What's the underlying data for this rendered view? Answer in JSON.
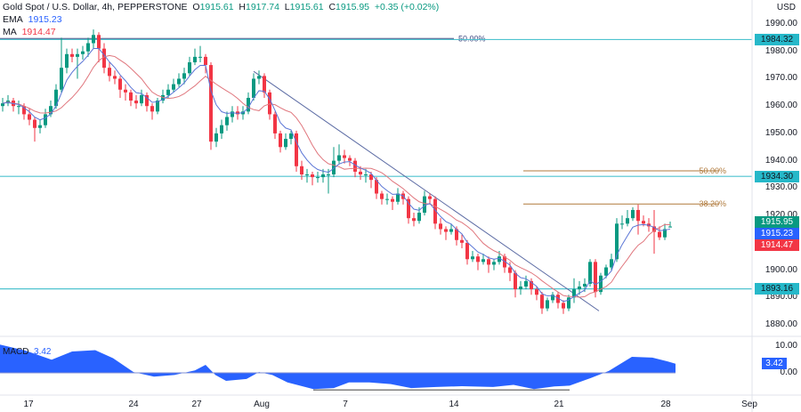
{
  "header": {
    "symbol": "Gold Spot / U.S. Dollar, 4h, PEPPERSTONE",
    "open_label": "O",
    "open": "1915.61",
    "high_label": "H",
    "high": "1917.74",
    "low_label": "L",
    "low": "1915.61",
    "close_label": "C",
    "close": "1915.95",
    "change": "+0.35 (+0.02%)",
    "ema_label": "EMA",
    "ema_value": "1915.23",
    "ma_label": "MA",
    "ma_value": "1914.47"
  },
  "price_axis": {
    "currency": "USD",
    "ticks": [
      "1990.00",
      "1980.00",
      "1970.00",
      "1960.00",
      "1950.00",
      "1940.00",
      "1930.00",
      "1920.00",
      "1900.00",
      "1890.00",
      "1880.00"
    ],
    "tick_values": [
      1990,
      1980,
      1970,
      1960,
      1950,
      1940,
      1930,
      1920,
      1900,
      1890,
      1880
    ],
    "last_price": "1915.95",
    "ema_price": "1915.23",
    "ma_price": "1914.47"
  },
  "macd_axis": {
    "ticks": [
      "10.00",
      "0.00"
    ],
    "tick_values": [
      10,
      0
    ],
    "label": "MACD",
    "value": "3.42"
  },
  "time_axis": [
    "17",
    "24",
    "27",
    "Aug",
    "7",
    "14",
    "21",
    "28",
    "Sep"
  ],
  "colors": {
    "up": "#089981",
    "down": "#f23645",
    "ema": "#5b76d6",
    "ma": "#e0767d",
    "hline": "#4fc3cf",
    "fib": "#b07a3c",
    "trend": "#5a6aa3",
    "macd": "#2962ff"
  },
  "chart_data": {
    "type": "candlestick",
    "ylim": [
      1873,
      1995
    ],
    "candles": [
      [
        1960,
        1963,
        1958,
        1961
      ],
      [
        1961,
        1964,
        1960,
        1962
      ],
      [
        1962,
        1963,
        1958,
        1960
      ],
      [
        1960,
        1962,
        1957,
        1960
      ],
      [
        1960,
        1961,
        1955,
        1957
      ],
      [
        1957,
        1959,
        1953,
        1955
      ],
      [
        1955,
        1956,
        1947,
        1952
      ],
      [
        1952,
        1955,
        1950,
        1953
      ],
      [
        1953,
        1959,
        1952,
        1957
      ],
      [
        1957,
        1962,
        1956,
        1960
      ],
      [
        1960,
        1968,
        1959,
        1966
      ],
      [
        1966,
        1985,
        1965,
        1974
      ],
      [
        1974,
        1981,
        1972,
        1979
      ],
      [
        1979,
        1981,
        1976,
        1978
      ],
      [
        1978,
        1981,
        1970,
        1979
      ],
      [
        1979,
        1982,
        1977,
        1980
      ],
      [
        1980,
        1985,
        1978,
        1983
      ],
      [
        1983,
        1988,
        1981,
        1986
      ],
      [
        1986,
        1987,
        1976,
        1981
      ],
      [
        1981,
        1983,
        1972,
        1974
      ],
      [
        1974,
        1976,
        1969,
        1971
      ],
      [
        1971,
        1973,
        1968,
        1970
      ],
      [
        1970,
        1971,
        1963,
        1966
      ],
      [
        1966,
        1968,
        1962,
        1965
      ],
      [
        1965,
        1966,
        1960,
        1962
      ],
      [
        1962,
        1964,
        1959,
        1961
      ],
      [
        1961,
        1966,
        1960,
        1964
      ],
      [
        1964,
        1965,
        1958,
        1960
      ],
      [
        1960,
        1961,
        1955,
        1958
      ],
      [
        1958,
        1963,
        1957,
        1962
      ],
      [
        1962,
        1966,
        1961,
        1964
      ],
      [
        1964,
        1968,
        1963,
        1966
      ],
      [
        1966,
        1970,
        1965,
        1968
      ],
      [
        1968,
        1972,
        1967,
        1970
      ],
      [
        1970,
        1974,
        1968,
        1972
      ],
      [
        1972,
        1978,
        1971,
        1976
      ],
      [
        1976,
        1981,
        1975,
        1978
      ],
      [
        1978,
        1982,
        1976,
        1978
      ],
      [
        1978,
        1979,
        1972,
        1975
      ],
      [
        1975,
        1976,
        1944,
        1947
      ],
      [
        1947,
        1952,
        1945,
        1950
      ],
      [
        1950,
        1955,
        1948,
        1953
      ],
      [
        1953,
        1958,
        1951,
        1956
      ],
      [
        1956,
        1960,
        1954,
        1958
      ],
      [
        1958,
        1960,
        1955,
        1957
      ],
      [
        1957,
        1960,
        1955,
        1958
      ],
      [
        1958,
        1965,
        1957,
        1963
      ],
      [
        1963,
        1972,
        1962,
        1970
      ],
      [
        1970,
        1973,
        1968,
        1971
      ],
      [
        1971,
        1972,
        1963,
        1965
      ],
      [
        1965,
        1966,
        1955,
        1957
      ],
      [
        1957,
        1958,
        1948,
        1950
      ],
      [
        1950,
        1951,
        1943,
        1945
      ],
      [
        1945,
        1950,
        1944,
        1948
      ],
      [
        1948,
        1951,
        1946,
        1950
      ],
      [
        1950,
        1951,
        1936,
        1938
      ],
      [
        1938,
        1940,
        1933,
        1935
      ],
      [
        1935,
        1937,
        1932,
        1935
      ],
      [
        1935,
        1936,
        1931,
        1934
      ],
      [
        1934,
        1936,
        1932,
        1934
      ],
      [
        1934,
        1937,
        1932,
        1935
      ],
      [
        1935,
        1937,
        1928,
        1935
      ],
      [
        1935,
        1945,
        1934,
        1940
      ],
      [
        1940,
        1946,
        1939,
        1942
      ],
      [
        1942,
        1944,
        1939,
        1941
      ],
      [
        1941,
        1942,
        1938,
        1940
      ],
      [
        1940,
        1941,
        1934,
        1936
      ],
      [
        1936,
        1938,
        1933,
        1935
      ],
      [
        1935,
        1937,
        1932,
        1935
      ],
      [
        1935,
        1936,
        1930,
        1933
      ],
      [
        1933,
        1934,
        1926,
        1928
      ],
      [
        1928,
        1929,
        1924,
        1926
      ],
      [
        1926,
        1928,
        1924,
        1926
      ],
      [
        1926,
        1927,
        1922,
        1925
      ],
      [
        1925,
        1930,
        1924,
        1928
      ],
      [
        1928,
        1929,
        1924,
        1926
      ],
      [
        1926,
        1927,
        1917,
        1919
      ],
      [
        1919,
        1921,
        1916,
        1918
      ],
      [
        1918,
        1923,
        1917,
        1921
      ],
      [
        1921,
        1929,
        1920,
        1927
      ],
      [
        1927,
        1928,
        1924,
        1926
      ],
      [
        1926,
        1927,
        1915,
        1917
      ],
      [
        1917,
        1919,
        1913,
        1915
      ],
      [
        1915,
        1916,
        1911,
        1914
      ],
      [
        1914,
        1917,
        1913,
        1915
      ],
      [
        1915,
        1916,
        1909,
        1911
      ],
      [
        1911,
        1913,
        1908,
        1910
      ],
      [
        1910,
        1911,
        1902,
        1904
      ],
      [
        1904,
        1907,
        1903,
        1905
      ],
      [
        1905,
        1906,
        1900,
        1903
      ],
      [
        1903,
        1906,
        1902,
        1904
      ],
      [
        1904,
        1905,
        1899,
        1902
      ],
      [
        1902,
        1904,
        1900,
        1903
      ],
      [
        1903,
        1907,
        1902,
        1905
      ],
      [
        1905,
        1906,
        1899,
        1901
      ],
      [
        1901,
        1903,
        1896,
        1899
      ],
      [
        1899,
        1900,
        1890,
        1893
      ],
      [
        1893,
        1896,
        1891,
        1894
      ],
      [
        1894,
        1898,
        1893,
        1896
      ],
      [
        1896,
        1897,
        1891,
        1893
      ],
      [
        1893,
        1894,
        1889,
        1891
      ],
      [
        1891,
        1892,
        1884,
        1886
      ],
      [
        1886,
        1890,
        1885,
        1889
      ],
      [
        1889,
        1892,
        1888,
        1891
      ],
      [
        1891,
        1892,
        1886,
        1888
      ],
      [
        1888,
        1889,
        1884,
        1886
      ],
      [
        1886,
        1891,
        1885,
        1890
      ],
      [
        1890,
        1897,
        1888,
        1893
      ],
      [
        1893,
        1896,
        1891,
        1894
      ],
      [
        1894,
        1897,
        1892,
        1895
      ],
      [
        1895,
        1904,
        1894,
        1903
      ],
      [
        1903,
        1904,
        1890,
        1892
      ],
      [
        1892,
        1899,
        1891,
        1898
      ],
      [
        1898,
        1902,
        1897,
        1901
      ],
      [
        1901,
        1906,
        1900,
        1904
      ],
      [
        1904,
        1919,
        1903,
        1917
      ],
      [
        1917,
        1920,
        1915,
        1917
      ],
      [
        1917,
        1922,
        1916,
        1919
      ],
      [
        1919,
        1923,
        1918,
        1922
      ],
      [
        1922,
        1924,
        1913,
        1918
      ],
      [
        1918,
        1920,
        1916,
        1917
      ],
      [
        1917,
        1919,
        1914,
        1916
      ],
      [
        1916,
        1922,
        1906,
        1914
      ],
      [
        1914,
        1916,
        1911,
        1912
      ],
      [
        1912,
        1917,
        1911,
        1915
      ],
      [
        1915.61,
        1917.74,
        1915.61,
        1915.95
      ]
    ],
    "horizontal_levels": [
      {
        "price": 1984.32,
        "label": "1984.32"
      },
      {
        "price": 1934.3,
        "label": "1934.30"
      },
      {
        "price": 1893.16,
        "label": "1893.16"
      }
    ],
    "top_fib": {
      "price": 1984.7,
      "label": "50.00%"
    },
    "fib_levels": [
      {
        "price": 1936.3,
        "label": "50.00%"
      },
      {
        "price": 1924.2,
        "label": "38.20%"
      }
    ],
    "trendline": {
      "start_price": 1972.7,
      "end_price": 1885.1
    },
    "macd": {
      "values": [
        10.6,
        8.3,
        4.9,
        8.0,
        8.5,
        5.5,
        0.3,
        -1.4,
        -0.8,
        0.9,
        3.0,
        -0.8,
        -3.0,
        -2.3,
        0.3,
        -0.8,
        -3.6,
        -6.1,
        -5.7,
        -3.6,
        -3.6,
        -4.2,
        -5.7,
        -5.3,
        -5.0,
        -5.3,
        -4.5,
        -6.1,
        -5.1,
        -4.8,
        -1.9,
        0.7,
        6.0,
        5.7,
        4.3,
        3.42
      ],
      "support_value": -6.4,
      "ylim": [
        -7,
        11
      ]
    }
  }
}
